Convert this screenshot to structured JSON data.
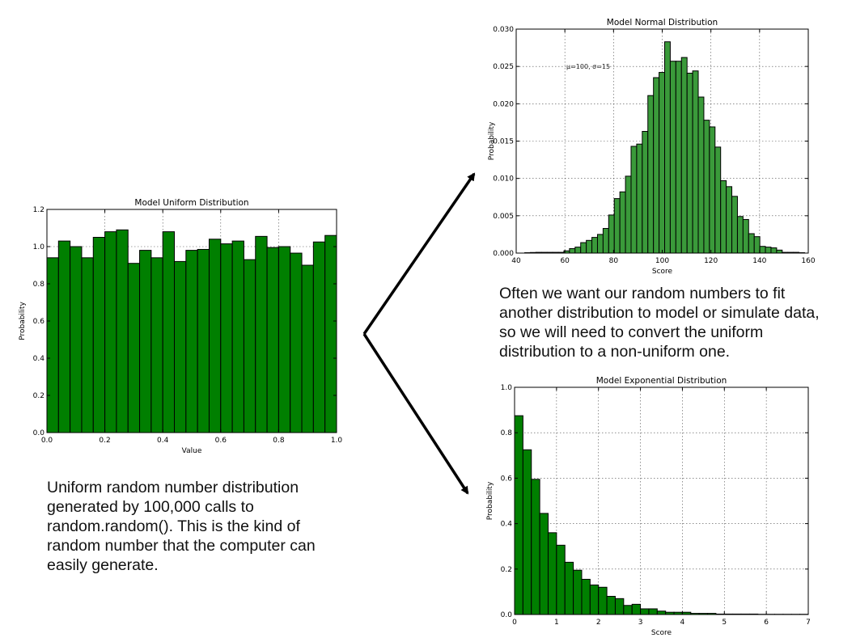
{
  "captions": {
    "uniform": "Uniform random number distribution generated by 100,000 calls to random.random(). This is the kind of random number that the computer can easily generate.",
    "normal": "Often we want our random numbers to fit another distribution to model or simulate data, so we will need to convert the uniform distribution to a non-uniform one."
  },
  "colors": {
    "bar_dark": "#007f00",
    "bar_light": "#3a9a3a",
    "edge": "#000000",
    "grid": "#000000"
  },
  "chart_data": [
    {
      "type": "bar",
      "title": "Model Uniform Distribution",
      "xlabel": "Value",
      "ylabel": "Probability",
      "xlim": [
        0,
        1
      ],
      "ylim": [
        0,
        1.2
      ],
      "xticks": [
        0,
        0.2,
        0.4,
        0.6,
        0.8,
        1.0
      ],
      "xtick_labels": [
        "0.0",
        "0.2",
        "0.4",
        "0.6",
        "0.8",
        "1.0"
      ],
      "yticks": [
        0,
        0.2,
        0.4,
        0.6,
        0.8,
        1.0,
        1.2
      ],
      "ytick_labels": [
        "0.0",
        "0.2",
        "0.4",
        "0.6",
        "0.8",
        "1.0",
        "1.2"
      ],
      "grid": true,
      "bin_start": 0,
      "bin_width": 0.04,
      "values": [
        0.94,
        1.03,
        1.0,
        0.94,
        1.05,
        1.08,
        1.09,
        0.91,
        0.98,
        0.94,
        1.08,
        0.92,
        0.98,
        0.985,
        1.04,
        1.015,
        1.03,
        0.93,
        1.055,
        0.995,
        1.0,
        0.965,
        0.9,
        1.025,
        1.06
      ]
    },
    {
      "type": "bar",
      "title": "Model Normal Distribution",
      "xlabel": "Score",
      "ylabel": "Probability",
      "annotation": "μ=100, σ=15",
      "xlim": [
        40,
        160
      ],
      "ylim": [
        0,
        0.03
      ],
      "xticks": [
        40,
        60,
        80,
        100,
        120,
        140,
        160
      ],
      "xtick_labels": [
        "40",
        "60",
        "80",
        "100",
        "120",
        "140",
        "160"
      ],
      "yticks": [
        0,
        0.005,
        0.01,
        0.015,
        0.02,
        0.025,
        0.03
      ],
      "ytick_labels": [
        "0.000",
        "0.005",
        "0.010",
        "0.015",
        "0.020",
        "0.025",
        "0.030"
      ],
      "grid": true,
      "bin_start": 43.5,
      "bin_width": 2.3,
      "values": [
        5e-05,
        8e-05,
        0.0001,
        0.0001,
        0.0001,
        0.0001,
        0.0001,
        0.0003,
        0.0006,
        0.0008,
        0.0014,
        0.0017,
        0.0021,
        0.0025,
        0.0033,
        0.0051,
        0.0073,
        0.0082,
        0.0103,
        0.0143,
        0.0146,
        0.0163,
        0.0211,
        0.0235,
        0.0242,
        0.0283,
        0.0257,
        0.0257,
        0.0262,
        0.0241,
        0.0244,
        0.0209,
        0.0178,
        0.0169,
        0.0142,
        0.0097,
        0.0089,
        0.0076,
        0.0049,
        0.0045,
        0.0026,
        0.0022,
        0.0009,
        0.0008,
        0.0007,
        0.0004,
        0.0001,
        0.0001,
        0.0001,
        5e-05
      ]
    },
    {
      "type": "bar",
      "title": "Model Exponential Distribution",
      "xlabel": "Score",
      "ylabel": "Probability",
      "xlim": [
        0,
        7
      ],
      "ylim": [
        0,
        1.0
      ],
      "xticks": [
        0,
        1,
        2,
        3,
        4,
        5,
        6,
        7
      ],
      "xtick_labels": [
        "0",
        "1",
        "2",
        "3",
        "4",
        "5",
        "6",
        "7"
      ],
      "yticks": [
        0,
        0.2,
        0.4,
        0.6,
        0.8,
        1.0
      ],
      "ytick_labels": [
        "0.0",
        "0.2",
        "0.4",
        "0.6",
        "0.8",
        "1.0"
      ],
      "grid": true,
      "bin_start": 0,
      "bin_width": 0.2,
      "values": [
        0.875,
        0.725,
        0.595,
        0.445,
        0.36,
        0.305,
        0.23,
        0.195,
        0.155,
        0.13,
        0.12,
        0.08,
        0.07,
        0.04,
        0.045,
        0.025,
        0.025,
        0.015,
        0.01,
        0.01,
        0.01,
        0.005,
        0.005,
        0.005,
        0.002,
        0.002,
        0.002,
        0.002,
        0.002,
        0.001,
        0.001,
        0.001,
        0.001,
        0.001,
        0.001
      ]
    }
  ]
}
